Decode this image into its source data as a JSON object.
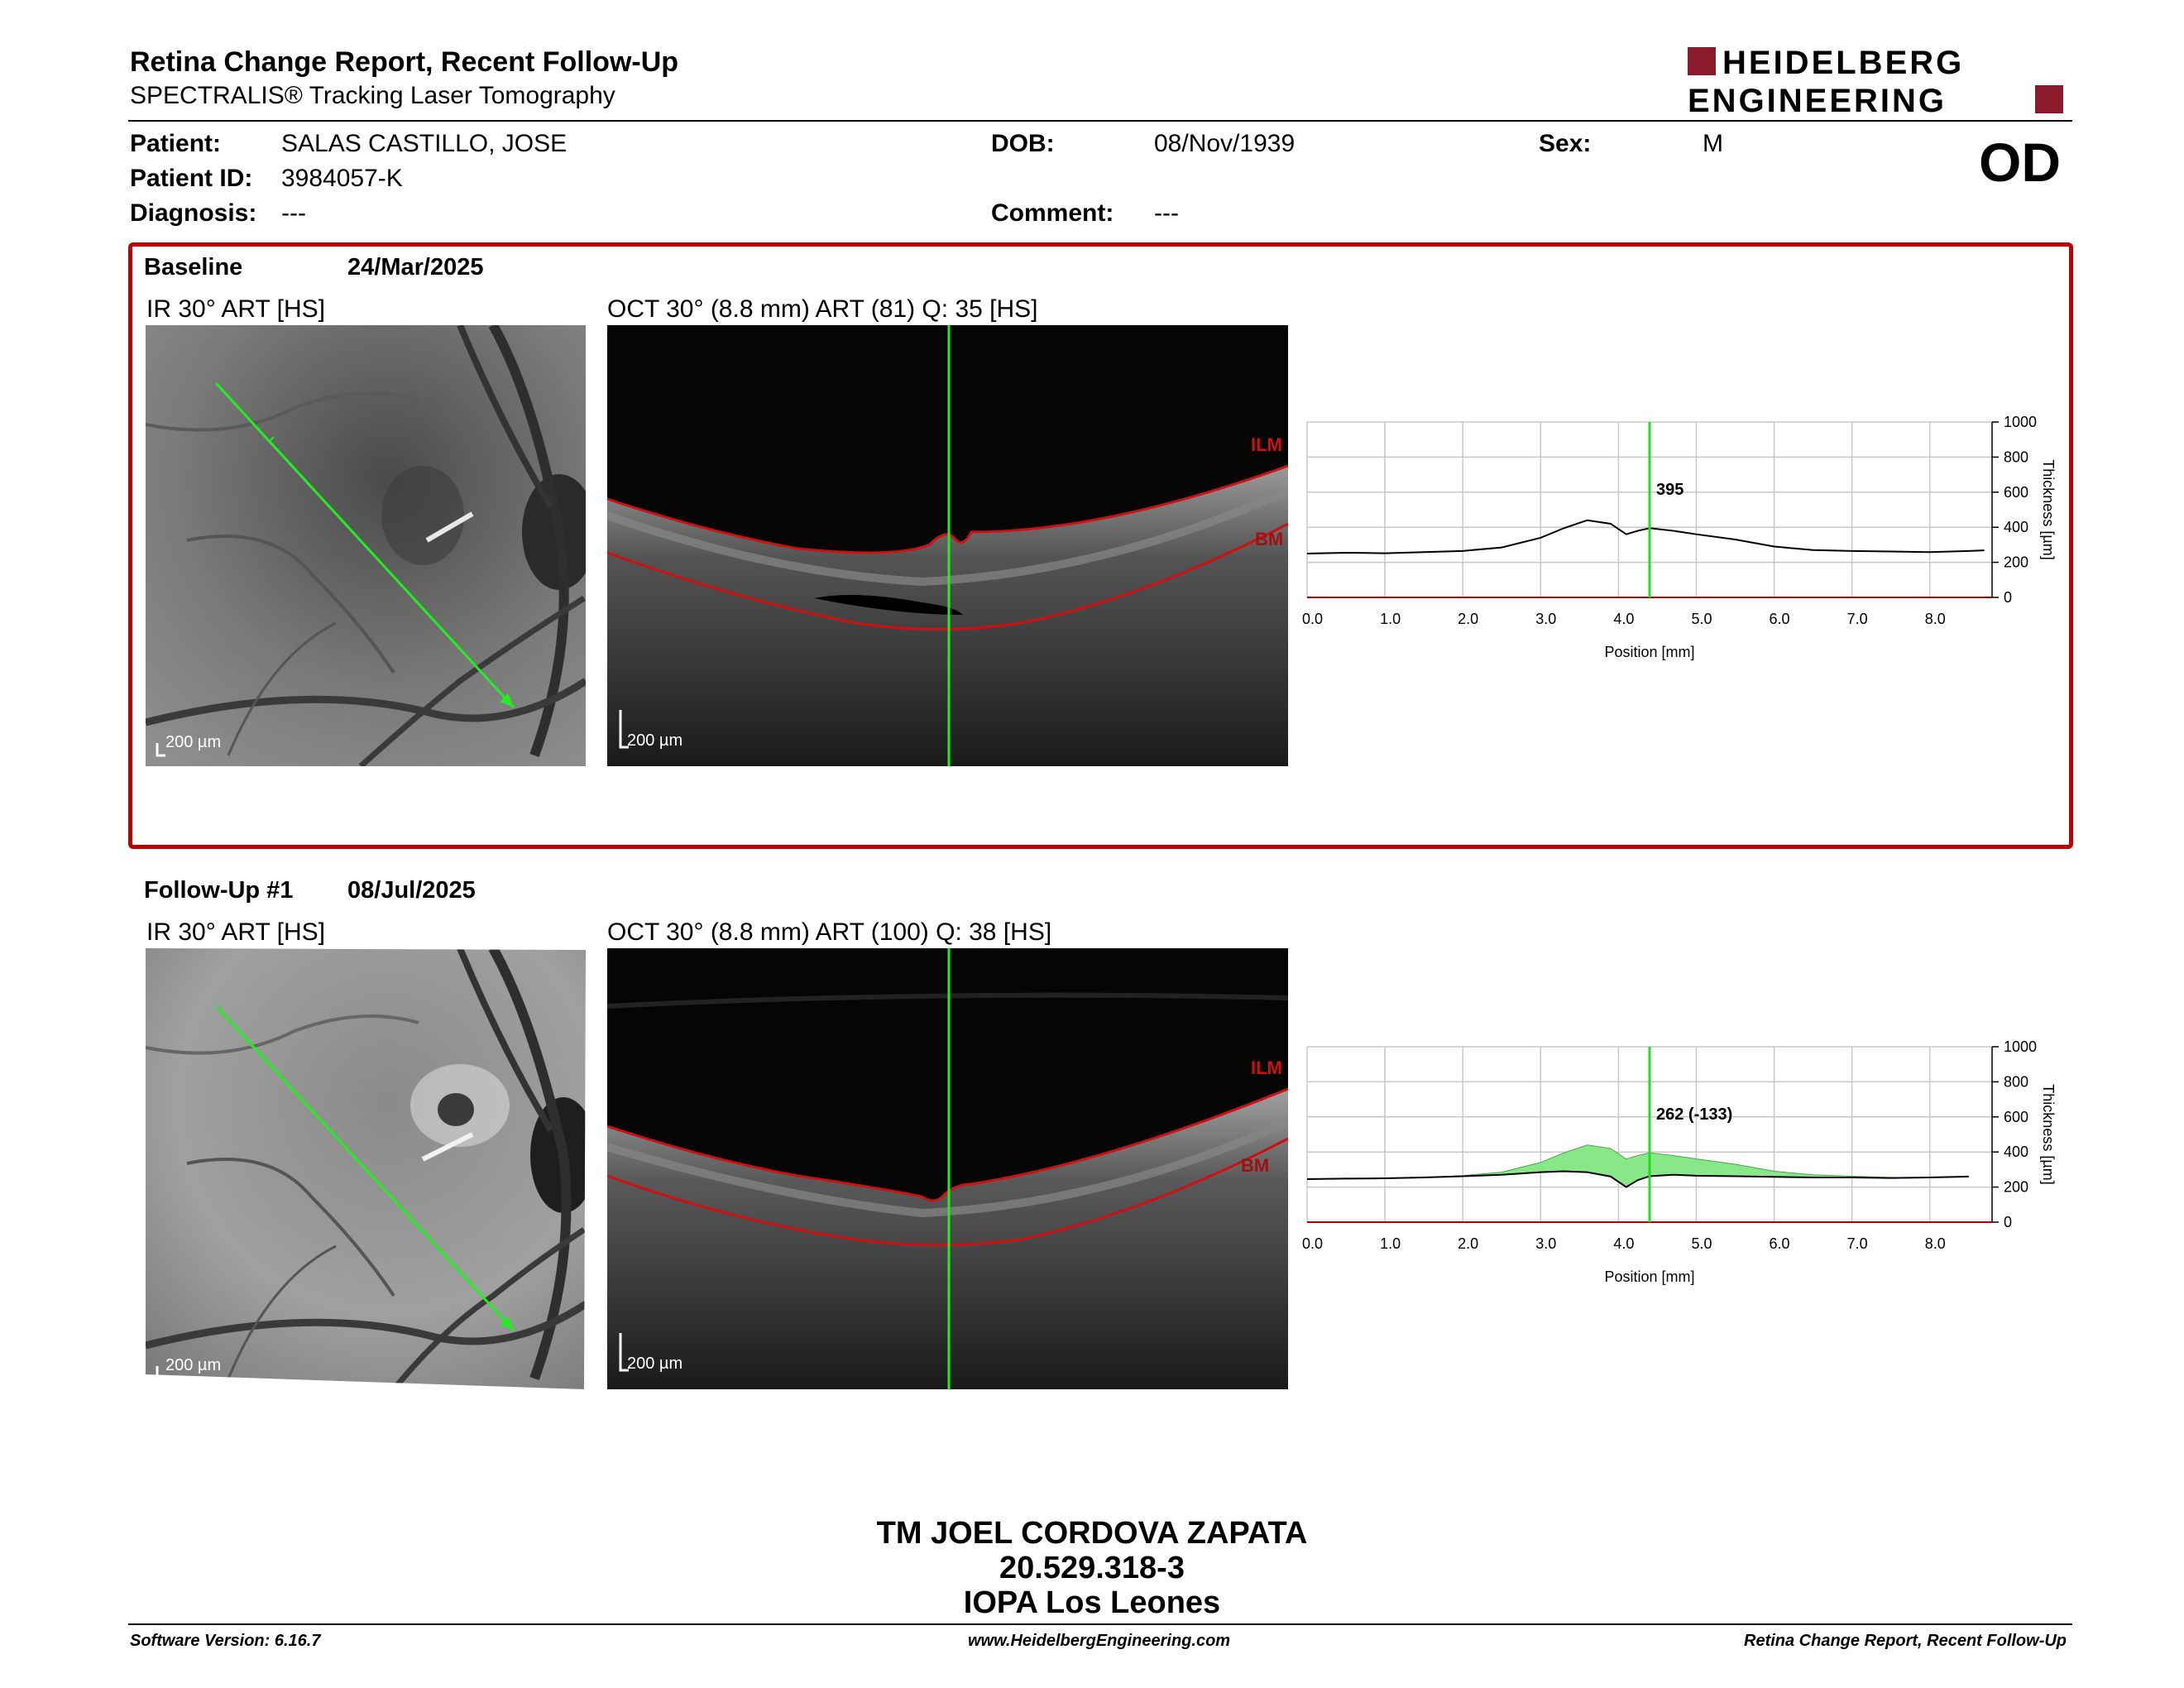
{
  "header": {
    "title": "Retina Change Report, Recent Follow-Up",
    "subtitle": "SPECTRALIS® Tracking Laser Tomography",
    "logo_line1": "HEIDELBERG",
    "logo_line2": "ENGINEERING",
    "brand_color": "#8b1a2b"
  },
  "patient": {
    "patient_label": "Patient:",
    "patient_value": "SALAS CASTILLO, JOSE",
    "id_label": "Patient ID:",
    "id_value": "3984057-K",
    "diagnosis_label": "Diagnosis:",
    "diagnosis_value": "---",
    "dob_label": "DOB:",
    "dob_value": "08/Nov/1939",
    "comment_label": "Comment:",
    "comment_value": "---",
    "sex_label": "Sex:",
    "sex_value": "M",
    "eye": "OD"
  },
  "baseline": {
    "label": "Baseline",
    "date": "24/Mar/2025",
    "ir_label": "IR 30° ART [HS]",
    "oct_label": "OCT 30° (8.8 mm) ART (81) Q: 35 [HS]",
    "scale": "200 µm",
    "ilm": "ILM",
    "bm": "BM",
    "readout": "395"
  },
  "followup": {
    "label": "Follow-Up #1",
    "date": "08/Jul/2025",
    "ir_label": "IR 30° ART [HS]",
    "oct_label": "OCT 30° (8.8 mm) ART (100) Q: 38 [HS]",
    "scale": "200 µm",
    "ilm": "ILM",
    "bm": "BM",
    "readout": "262 (-133)"
  },
  "chart_data": [
    {
      "type": "line",
      "xlabel": "Position [mm]",
      "ylabel": "Thickness [µm]",
      "xlim": [
        0,
        8.8
      ],
      "ylim": [
        0,
        1000
      ],
      "x_ticks": [
        "0.0",
        "1.0",
        "2.0",
        "3.0",
        "4.0",
        "5.0",
        "6.0",
        "7.0",
        "8.0"
      ],
      "y_ticks": [
        "0",
        "200",
        "400",
        "600",
        "800",
        "1000"
      ],
      "cursor_x": 4.4,
      "readout": "395",
      "series": [
        {
          "x": [
            0,
            0.5,
            1,
            1.5,
            2,
            2.5,
            3,
            3.3,
            3.6,
            3.9,
            4.1,
            4.25,
            4.4,
            4.7,
            5,
            5.5,
            6,
            6.5,
            7,
            7.5,
            8,
            8.5,
            8.7
          ],
          "values": [
            250,
            255,
            252,
            258,
            265,
            285,
            340,
            395,
            440,
            420,
            360,
            380,
            395,
            380,
            360,
            330,
            290,
            270,
            265,
            262,
            258,
            265,
            268
          ]
        }
      ]
    },
    {
      "type": "line",
      "xlabel": "Position [mm]",
      "ylabel": "Thickness [µm]",
      "xlim": [
        0,
        8.8
      ],
      "ylim": [
        0,
        1000
      ],
      "x_ticks": [
        "0.0",
        "1.0",
        "2.0",
        "3.0",
        "4.0",
        "5.0",
        "6.0",
        "7.0",
        "8.0"
      ],
      "y_ticks": [
        "0",
        "200",
        "400",
        "600",
        "800",
        "1000"
      ],
      "cursor_x": 4.4,
      "readout": "262 (-133)",
      "series": [
        {
          "x": [
            0,
            0.5,
            1,
            1.5,
            2,
            2.5,
            3,
            3.3,
            3.6,
            3.9,
            4.1,
            4.25,
            4.4,
            4.7,
            5,
            5.5,
            6,
            6.5,
            7,
            7.5,
            8,
            8.5
          ],
          "values": [
            245,
            248,
            250,
            255,
            262,
            270,
            285,
            290,
            285,
            260,
            200,
            240,
            262,
            270,
            265,
            262,
            258,
            255,
            255,
            252,
            255,
            260
          ]
        },
        {
          "x": [
            0,
            0.5,
            1,
            1.5,
            2,
            2.5,
            3,
            3.3,
            3.6,
            3.9,
            4.1,
            4.25,
            4.4,
            4.7,
            5,
            5.5,
            6,
            6.5,
            7,
            7.5,
            8,
            8.5
          ],
          "values": [
            245,
            248,
            250,
            255,
            265,
            285,
            340,
            395,
            440,
            420,
            360,
            380,
            395,
            380,
            360,
            330,
            290,
            270,
            262,
            255,
            255,
            260
          ]
        }
      ]
    }
  ],
  "signature": {
    "line1": "TM JOEL CORDOVA ZAPATA",
    "line2": "20.529.318-3",
    "line3": "IOPA Los Leones"
  },
  "footer": {
    "software": "Software Version: 6.16.7",
    "website": "www.HeidelbergEngineering.com",
    "report": "Retina Change Report, Recent Follow-Up"
  }
}
